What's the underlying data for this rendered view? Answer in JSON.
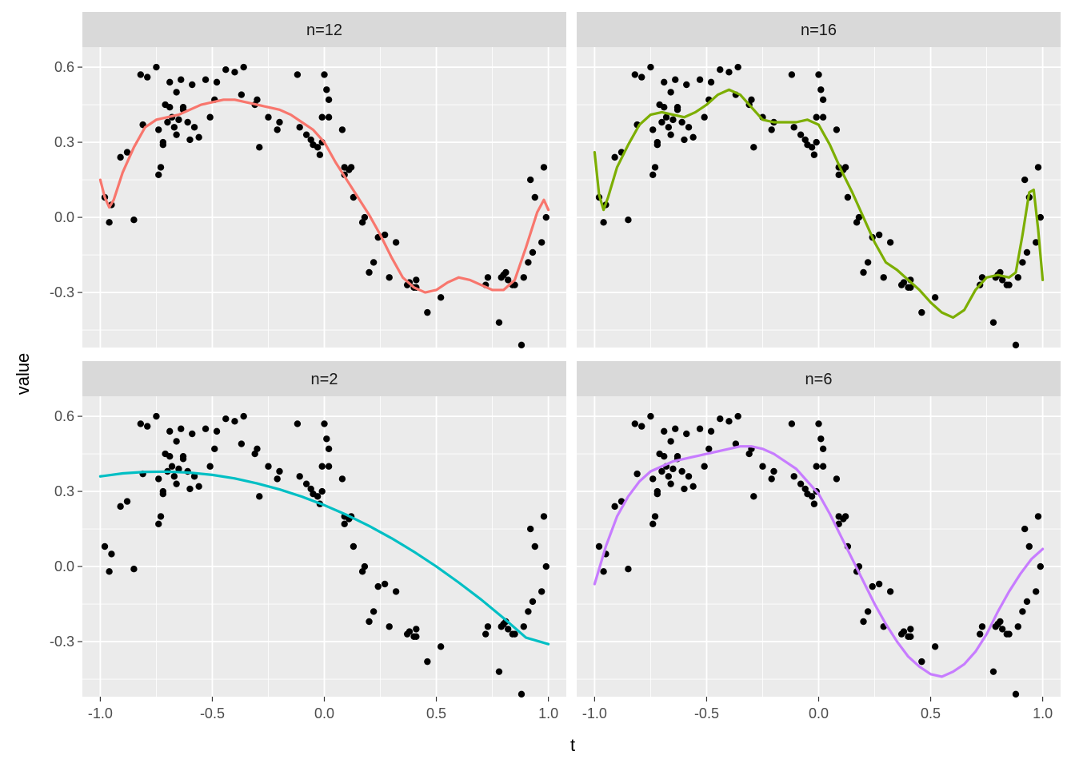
{
  "chart_data": {
    "type": "scatter",
    "xlabel": "t",
    "ylabel": "value",
    "xlim": [
      -1.08,
      1.08
    ],
    "ylim": [
      -0.52,
      0.68
    ],
    "x_ticks": [
      "-1.0",
      "-0.5",
      "0.0",
      "0.5",
      "1.0"
    ],
    "x_tick_values": [
      -1.0,
      -0.5,
      0.0,
      0.5,
      1.0
    ],
    "y_ticks": [
      "-0.3",
      "0.0",
      "0.3",
      "0.6"
    ],
    "y_tick_values": [
      -0.3,
      0.0,
      0.3,
      0.6
    ],
    "grid": true,
    "points": {
      "x": [
        -0.98,
        -0.96,
        -0.95,
        -0.91,
        -0.88,
        -0.85,
        -0.82,
        -0.81,
        -0.79,
        -0.75,
        -0.74,
        -0.74,
        -0.73,
        -0.72,
        -0.72,
        -0.71,
        -0.7,
        -0.69,
        -0.69,
        -0.68,
        -0.67,
        -0.66,
        -0.66,
        -0.65,
        -0.64,
        -0.63,
        -0.63,
        -0.61,
        -0.6,
        -0.59,
        -0.58,
        -0.56,
        -0.53,
        -0.51,
        -0.49,
        -0.48,
        -0.44,
        -0.4,
        -0.37,
        -0.36,
        -0.31,
        -0.3,
        -0.29,
        -0.25,
        -0.21,
        -0.2,
        -0.12,
        -0.11,
        -0.08,
        -0.06,
        -0.05,
        -0.03,
        -0.02,
        -0.01,
        -0.01,
        0.0,
        0.01,
        0.02,
        0.02,
        0.08,
        0.09,
        0.09,
        0.11,
        0.12,
        0.13,
        0.17,
        0.18,
        0.2,
        0.22,
        0.24,
        0.27,
        0.29,
        0.32,
        0.37,
        0.38,
        0.4,
        0.41,
        0.41,
        0.46,
        0.52,
        0.72,
        0.73,
        0.78,
        0.79,
        0.8,
        0.81,
        0.82,
        0.84,
        0.85,
        0.88,
        0.89,
        0.91,
        0.92,
        0.93,
        0.94,
        0.97,
        0.98,
        0.99
      ],
      "y": [
        0.08,
        -0.02,
        0.05,
        0.24,
        0.26,
        -0.01,
        0.57,
        0.37,
        0.56,
        0.6,
        0.17,
        0.35,
        0.2,
        0.29,
        0.3,
        0.45,
        0.38,
        0.44,
        0.54,
        0.4,
        0.36,
        0.33,
        0.5,
        0.39,
        0.55,
        0.43,
        0.44,
        0.38,
        0.31,
        0.53,
        0.36,
        0.32,
        0.55,
        0.4,
        0.47,
        0.54,
        0.59,
        0.58,
        0.49,
        0.6,
        0.45,
        0.47,
        0.28,
        0.4,
        0.35,
        0.38,
        0.57,
        0.36,
        0.33,
        0.31,
        0.29,
        0.28,
        0.25,
        0.3,
        0.4,
        0.57,
        0.51,
        0.47,
        0.4,
        0.35,
        0.2,
        0.17,
        0.19,
        0.2,
        0.08,
        -0.02,
        0.0,
        -0.22,
        -0.18,
        -0.08,
        -0.07,
        -0.24,
        -0.1,
        -0.27,
        -0.26,
        -0.28,
        -0.25,
        -0.28,
        -0.38,
        -0.32,
        -0.27,
        -0.24,
        -0.42,
        -0.24,
        -0.23,
        -0.22,
        -0.25,
        -0.27,
        -0.27,
        -0.51,
        -0.24,
        -0.18,
        0.15,
        -0.14,
        0.08,
        -0.1,
        0.2,
        0.0
      ]
    },
    "panels": [
      {
        "label": "n=12",
        "color": "#F8766D",
        "curve": {
          "x": [
            -1.0,
            -0.98,
            -0.96,
            -0.94,
            -0.9,
            -0.85,
            -0.8,
            -0.75,
            -0.7,
            -0.65,
            -0.6,
            -0.55,
            -0.5,
            -0.45,
            -0.4,
            -0.35,
            -0.3,
            -0.25,
            -0.2,
            -0.15,
            -0.1,
            -0.05,
            0.0,
            0.05,
            0.1,
            0.15,
            0.2,
            0.25,
            0.3,
            0.35,
            0.4,
            0.45,
            0.5,
            0.55,
            0.6,
            0.65,
            0.7,
            0.75,
            0.8,
            0.85,
            0.9,
            0.95,
            0.98,
            1.0
          ],
          "y": [
            0.15,
            0.08,
            0.04,
            0.07,
            0.18,
            0.28,
            0.36,
            0.39,
            0.4,
            0.41,
            0.43,
            0.45,
            0.46,
            0.47,
            0.47,
            0.46,
            0.45,
            0.44,
            0.43,
            0.41,
            0.38,
            0.35,
            0.3,
            0.22,
            0.15,
            0.08,
            0.01,
            -0.07,
            -0.16,
            -0.24,
            -0.28,
            -0.3,
            -0.29,
            -0.26,
            -0.24,
            -0.25,
            -0.27,
            -0.29,
            -0.29,
            -0.25,
            -0.12,
            0.02,
            0.07,
            0.03
          ]
        }
      },
      {
        "label": "n=16",
        "color": "#7CAE00",
        "curve": {
          "x": [
            -1.0,
            -0.98,
            -0.96,
            -0.94,
            -0.9,
            -0.85,
            -0.8,
            -0.75,
            -0.7,
            -0.65,
            -0.6,
            -0.55,
            -0.5,
            -0.45,
            -0.4,
            -0.35,
            -0.3,
            -0.25,
            -0.2,
            -0.15,
            -0.1,
            -0.05,
            0.0,
            0.05,
            0.1,
            0.15,
            0.2,
            0.25,
            0.3,
            0.35,
            0.4,
            0.45,
            0.5,
            0.55,
            0.6,
            0.65,
            0.7,
            0.75,
            0.8,
            0.85,
            0.88,
            0.91,
            0.94,
            0.96,
            0.98,
            1.0
          ],
          "y": [
            0.26,
            0.09,
            0.03,
            0.08,
            0.2,
            0.29,
            0.37,
            0.41,
            0.42,
            0.41,
            0.4,
            0.42,
            0.45,
            0.49,
            0.51,
            0.49,
            0.44,
            0.39,
            0.38,
            0.38,
            0.38,
            0.39,
            0.37,
            0.29,
            0.19,
            0.1,
            0.0,
            -0.1,
            -0.18,
            -0.21,
            -0.25,
            -0.29,
            -0.34,
            -0.38,
            -0.4,
            -0.37,
            -0.29,
            -0.24,
            -0.23,
            -0.24,
            -0.22,
            -0.07,
            0.1,
            0.11,
            -0.05,
            -0.25
          ]
        }
      },
      {
        "label": "n=2",
        "color": "#00BFC4",
        "curve": {
          "x": [
            -1.0,
            -0.9,
            -0.8,
            -0.7,
            -0.6,
            -0.5,
            -0.4,
            -0.3,
            -0.2,
            -0.1,
            0.0,
            0.1,
            0.2,
            0.3,
            0.4,
            0.5,
            0.6,
            0.7,
            0.8,
            0.9,
            1.0
          ],
          "y": [
            0.36,
            0.372,
            0.378,
            0.379,
            0.375,
            0.366,
            0.352,
            0.332,
            0.308,
            0.279,
            0.245,
            0.206,
            0.162,
            0.113,
            0.059,
            0.0,
            -0.064,
            -0.132,
            -0.206,
            -0.284,
            -0.31
          ]
        }
      },
      {
        "label": "n=6",
        "color": "#C77CFF",
        "curve": {
          "x": [
            -1.0,
            -0.95,
            -0.9,
            -0.85,
            -0.8,
            -0.75,
            -0.7,
            -0.65,
            -0.6,
            -0.55,
            -0.5,
            -0.45,
            -0.4,
            -0.35,
            -0.3,
            -0.25,
            -0.2,
            -0.15,
            -0.1,
            -0.05,
            0.0,
            0.05,
            0.1,
            0.15,
            0.2,
            0.25,
            0.3,
            0.35,
            0.4,
            0.45,
            0.5,
            0.55,
            0.6,
            0.65,
            0.7,
            0.75,
            0.8,
            0.85,
            0.9,
            0.95,
            1.0
          ],
          "y": [
            -0.07,
            0.08,
            0.2,
            0.28,
            0.34,
            0.38,
            0.4,
            0.42,
            0.43,
            0.44,
            0.45,
            0.46,
            0.47,
            0.48,
            0.48,
            0.47,
            0.45,
            0.42,
            0.39,
            0.34,
            0.29,
            0.21,
            0.12,
            0.03,
            -0.06,
            -0.15,
            -0.23,
            -0.3,
            -0.36,
            -0.4,
            -0.43,
            -0.44,
            -0.42,
            -0.39,
            -0.34,
            -0.27,
            -0.18,
            -0.1,
            -0.03,
            0.03,
            0.07
          ]
        }
      }
    ]
  }
}
